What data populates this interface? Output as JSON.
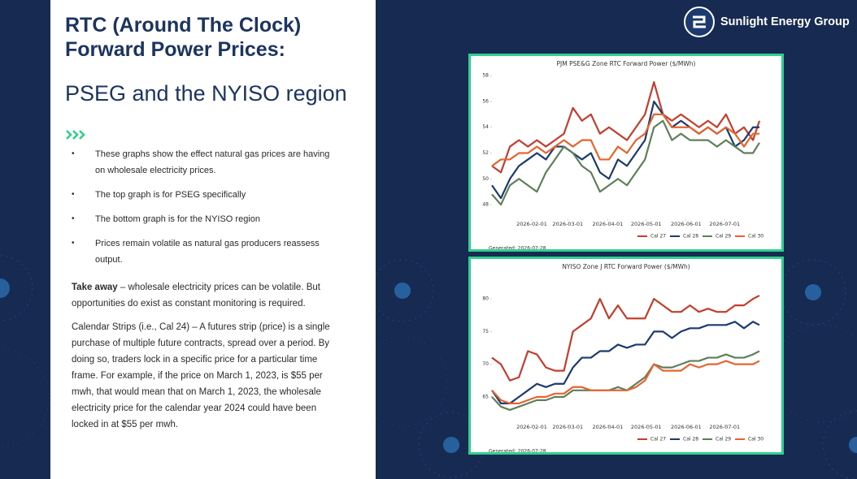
{
  "slide": {
    "title": [
      "RTC (Around The Clock)",
      "Forward Power Prices:"
    ],
    "subtitle": "PSEG and the NYISO region",
    "bullets": [
      "These graphs show the effect natural gas prices are having on wholesale electricity prices.",
      "The top graph is for PSEG specifically",
      "The bottom graph is for the NYISO region",
      "Prices remain volatile as natural gas producers reassess output."
    ],
    "takeaway": {
      "label": "Take away",
      "text": "– wholesale electricity prices can be volatile. But opportunities do exist as constant monitoring is required."
    },
    "paragraph": "Calendar Strips (i.e., Cal 24) – A futures strip (price) is a single purchase of multiple future contracts, spread over a period. By doing so, traders lock in a specific price for a particular time frame.  For example, if the price on March 1, 2023, is $55 per mwh, that would mean that on March 1, 2023, the wholesale electricity price for the calendar year 2024 could have been locked in at $55 per mwh.",
    "logo": "Sunlight Energy Group"
  },
  "chart_data": [
    {
      "type": "line",
      "title": "PJM PSE&G Zone RTC Forward Power ($/MWh)",
      "footnote": "Generated: 2026-07-28",
      "x": [
        "2026-01-01",
        "2026-01-08",
        "2026-01-15",
        "2026-01-22",
        "2026-01-29",
        "2026-02-05",
        "2026-02-12",
        "2026-02-19",
        "2026-02-26",
        "2026-03-05",
        "2026-03-12",
        "2026-03-19",
        "2026-03-26",
        "2026-04-02",
        "2026-04-09",
        "2026-04-16",
        "2026-04-23",
        "2026-04-30",
        "2026-05-07",
        "2026-05-14",
        "2026-05-21",
        "2026-05-28",
        "2026-06-04",
        "2026-06-11",
        "2026-06-18",
        "2026-06-25",
        "2026-07-02",
        "2026-07-09",
        "2026-07-16",
        "2026-07-23",
        "2026-07-28"
      ],
      "xlim": [
        "2026-01-01",
        "2026-07-28"
      ],
      "xticks": [
        "2026-02-01",
        "2026-03-01",
        "2026-04-01",
        "2026-05-01",
        "2026-06-01",
        "2026-07-01"
      ],
      "ylim": [
        47.5,
        58.2
      ],
      "yticks": [
        48,
        50,
        52,
        54,
        56,
        58
      ],
      "series": [
        {
          "name": "Cal 27",
          "color": "#c53d2c",
          "values": [
            51,
            50.5,
            52.5,
            53,
            52.5,
            53,
            52.5,
            53,
            53.5,
            55.5,
            54.5,
            55,
            53.5,
            54,
            53.5,
            53,
            54,
            55,
            57.5,
            55,
            54.5,
            55,
            54.5,
            54,
            54.5,
            54,
            55,
            53.5,
            54,
            53,
            54.5
          ]
        },
        {
          "name": "Cal 28",
          "color": "#1c3a6e",
          "values": [
            49.5,
            48.5,
            50,
            51,
            51.5,
            52,
            51.5,
            52.5,
            52.5,
            52,
            51.5,
            52,
            50.5,
            50,
            51.5,
            51,
            52,
            53,
            56,
            55,
            54,
            54.5,
            54,
            53.5,
            54,
            53.5,
            54,
            52.5,
            53,
            54,
            54
          ]
        },
        {
          "name": "Cal 29",
          "color": "#5f7f5b",
          "values": [
            48.8,
            48,
            49.5,
            50,
            49.5,
            49,
            50.5,
            51.5,
            52.5,
            52,
            51,
            50.5,
            49,
            49.5,
            50,
            49.5,
            50.5,
            51.5,
            54,
            54.5,
            53,
            53.5,
            53,
            53,
            53,
            52.5,
            53,
            52.5,
            52,
            52,
            52.8
          ]
        },
        {
          "name": "Cal 30",
          "color": "#e6642e",
          "values": [
            51,
            51.5,
            51.5,
            52,
            52,
            52.5,
            52,
            52.5,
            53,
            52.5,
            53,
            53,
            51.5,
            51.5,
            52.5,
            52,
            53,
            53.5,
            55,
            55,
            54,
            54,
            54,
            53.5,
            54,
            53.5,
            54,
            53.5,
            52.5,
            53.5,
            53.5
          ]
        }
      ]
    },
    {
      "type": "line",
      "title": "NYISO Zone J RTC Forward Power ($/MWh)",
      "footnote": "Generated: 2026-07-28",
      "x": [
        "2026-01-01",
        "2026-01-08",
        "2026-01-15",
        "2026-01-22",
        "2026-01-29",
        "2026-02-05",
        "2026-02-12",
        "2026-02-19",
        "2026-02-26",
        "2026-03-05",
        "2026-03-12",
        "2026-03-19",
        "2026-03-26",
        "2026-04-02",
        "2026-04-09",
        "2026-04-16",
        "2026-04-23",
        "2026-04-30",
        "2026-05-07",
        "2026-05-14",
        "2026-05-21",
        "2026-05-28",
        "2026-06-04",
        "2026-06-11",
        "2026-06-18",
        "2026-06-25",
        "2026-07-02",
        "2026-07-09",
        "2026-07-16",
        "2026-07-23",
        "2026-07-28"
      ],
      "xlim": [
        "2026-01-01",
        "2026-07-28"
      ],
      "xticks": [
        "2026-02-01",
        "2026-03-01",
        "2026-04-01",
        "2026-05-01",
        "2026-06-01",
        "2026-07-01"
      ],
      "ylim": [
        62,
        82
      ],
      "yticks": [
        65,
        70,
        75,
        80
      ],
      "series": [
        {
          "name": "Cal 27",
          "color": "#c53d2c",
          "values": [
            71,
            70,
            67.5,
            68,
            72,
            71.5,
            69.5,
            69,
            69,
            75,
            76,
            77,
            80,
            77,
            79,
            77,
            77,
            77,
            80,
            79,
            78,
            78,
            79,
            78,
            78.5,
            78,
            78,
            79,
            79,
            80,
            80.5
          ]
        },
        {
          "name": "Cal 28",
          "color": "#1c3a6e",
          "values": [
            66,
            64,
            64,
            65,
            66,
            67,
            66.5,
            67,
            67,
            69.5,
            71,
            71,
            72,
            72,
            73,
            72.5,
            73,
            73,
            75,
            75,
            74,
            75,
            75.5,
            75.5,
            76,
            76,
            76,
            76.5,
            75.5,
            76.5,
            76
          ]
        },
        {
          "name": "Cal 29",
          "color": "#5f7f5b",
          "values": [
            65,
            63.5,
            63,
            63.5,
            64,
            64.5,
            64.5,
            65,
            65,
            66,
            66,
            66,
            66,
            66,
            66.5,
            66,
            67,
            68,
            70,
            69.5,
            69.5,
            70,
            70.5,
            70.5,
            71,
            71,
            71.5,
            71,
            71,
            71.5,
            72
          ]
        },
        {
          "name": "Cal 30",
          "color": "#e6642e",
          "values": [
            66,
            64.5,
            64,
            64,
            64.5,
            65,
            65,
            65.5,
            65.5,
            66.5,
            66.5,
            66,
            66,
            66,
            66,
            66,
            66.5,
            67.5,
            70,
            69,
            69,
            69,
            70,
            69.5,
            70,
            70,
            70.5,
            70,
            70,
            70,
            70.5
          ]
        }
      ]
    }
  ]
}
